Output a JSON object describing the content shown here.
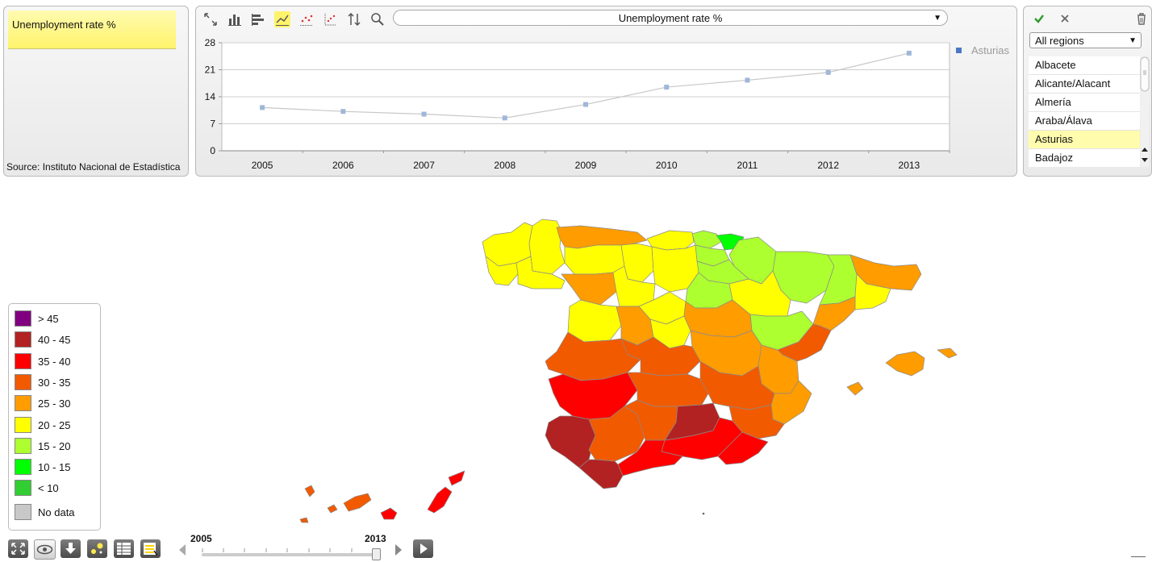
{
  "info": {
    "title": "Unemployment rate %",
    "source": "Source: Instituto Nacional de Estadística"
  },
  "toolbar": {
    "icons": [
      "fit-icon",
      "bar-chart-icon",
      "horizontal-bar-icon",
      "line-chart-icon",
      "dot-plot-icon",
      "scatter-icon",
      "sort-icon",
      "zoom-icon"
    ],
    "selected": "line-chart-icon"
  },
  "indicator": {
    "value": "Unemployment rate %"
  },
  "chart_data": {
    "type": "line",
    "x": [
      "2005",
      "2006",
      "2007",
      "2008",
      "2009",
      "2010",
      "2011",
      "2012",
      "2013"
    ],
    "series": [
      {
        "name": "Asturias",
        "values": [
          11.2,
          10.2,
          9.5,
          8.5,
          12.0,
          16.5,
          18.3,
          20.3,
          25.3
        ]
      }
    ],
    "ylim": [
      0,
      28
    ],
    "yticks": [
      0,
      7,
      14,
      21,
      28
    ],
    "grid": true,
    "legend": "right",
    "colors": {
      "line": "#c7c7c7",
      "marker": "#9fb7d8",
      "legend_marker": "#4a78c2"
    }
  },
  "regions": {
    "filter": "All regions",
    "items": [
      "Albacete",
      "Alicante/Alacant",
      "Almería",
      "Araba/Álava",
      "Asturias",
      "Badajoz"
    ],
    "selected": "Asturias"
  },
  "legend": {
    "items": [
      {
        "label": "> 45",
        "color": "#800080"
      },
      {
        "label": "40 - 45",
        "color": "#b22222"
      },
      {
        "label": "35 - 40",
        "color": "#ff0000"
      },
      {
        "label": "30 - 35",
        "color": "#f25a00"
      },
      {
        "label": "25 - 30",
        "color": "#ff9c00"
      },
      {
        "label": "20 - 25",
        "color": "#ffff00"
      },
      {
        "label": "15 - 20",
        "color": "#adff2f"
      },
      {
        "label": "10 - 15",
        "color": "#00ff00"
      },
      {
        "label": "< 10",
        "color": "#32cd32"
      },
      {
        "label": "No data",
        "color": "#c8c8c8"
      }
    ]
  },
  "timeline": {
    "start_year": "2005",
    "end_year": "2013",
    "position": 1.0
  },
  "bottom_buttons": [
    "fullscreen-icon",
    "eye-icon",
    "download-icon",
    "bubble-icon",
    "table-icon",
    "legend-icon"
  ]
}
